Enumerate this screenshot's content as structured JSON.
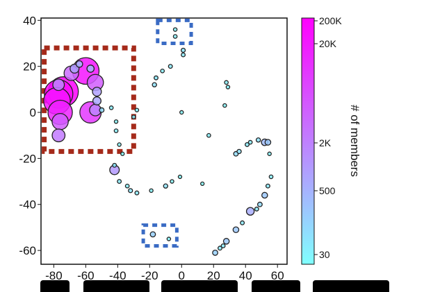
{
  "chart_data": {
    "type": "scatter",
    "xlim": [
      -88,
      66
    ],
    "ylim": [
      -66,
      41
    ],
    "x_ticks": [
      -80,
      -60,
      -40,
      -20,
      0,
      20,
      40,
      60
    ],
    "y_ticks": [
      40,
      20,
      0,
      -20,
      -40,
      -60
    ],
    "grid": false,
    "colorbar": {
      "label": "# of members",
      "ticks": [
        "200K",
        "20K",
        "2K",
        "500",
        "30"
      ],
      "tick_values": [
        200000,
        20000,
        2000,
        500,
        30
      ],
      "colors": [
        "#ff00ff",
        "#80ffff"
      ]
    },
    "highlight_boxes": [
      {
        "color": "#a52a1a",
        "x_range": [
          -86,
          -30
        ],
        "y_range": [
          -17,
          28
        ]
      },
      {
        "color": "#3a6bc4",
        "x_range": [
          -15,
          6
        ],
        "y_range": [
          30,
          40
        ]
      },
      {
        "color": "#3a6bc4",
        "x_range": [
          -24,
          -3
        ],
        "y_range": [
          -58,
          -49
        ]
      }
    ],
    "points": [
      {
        "x": -74,
        "y": 9,
        "m": 200000
      },
      {
        "x": -77,
        "y": 8,
        "m": 150000
      },
      {
        "x": -78,
        "y": 5,
        "m": 100000
      },
      {
        "x": -76,
        "y": 0,
        "m": 60000
      },
      {
        "x": -76,
        "y": -4,
        "m": 8000
      },
      {
        "x": -77,
        "y": -10,
        "m": 3000
      },
      {
        "x": -77,
        "y": 12,
        "m": 2000
      },
      {
        "x": -69,
        "y": 17,
        "m": 5000
      },
      {
        "x": -67,
        "y": 19,
        "m": 800
      },
      {
        "x": -64,
        "y": 21,
        "m": 300
      },
      {
        "x": -60,
        "y": 18,
        "m": 100000
      },
      {
        "x": -57,
        "y": 19,
        "m": 400
      },
      {
        "x": -54,
        "y": 13,
        "m": 8000
      },
      {
        "x": -53,
        "y": 9,
        "m": 800
      },
      {
        "x": -53,
        "y": 5,
        "m": 600
      },
      {
        "x": -54,
        "y": 1,
        "m": 2000
      },
      {
        "x": -57,
        "y": 0,
        "m": 30000
      },
      {
        "x": -50,
        "y": 1,
        "m": 100
      },
      {
        "x": -44,
        "y": 2,
        "m": 50
      },
      {
        "x": -41,
        "y": -4,
        "m": 40
      },
      {
        "x": -41,
        "y": -8,
        "m": 50
      },
      {
        "x": -39,
        "y": -14,
        "m": 40
      },
      {
        "x": -37,
        "y": -18,
        "m": 30
      },
      {
        "x": -30,
        "y": -2,
        "m": 50
      },
      {
        "x": -28,
        "y": 1,
        "m": 40
      },
      {
        "x": -17,
        "y": 12,
        "m": 80
      },
      {
        "x": -16,
        "y": 15,
        "m": 60
      },
      {
        "x": -12,
        "y": 18,
        "m": 50
      },
      {
        "x": -7,
        "y": 20,
        "m": 60
      },
      {
        "x": 1,
        "y": 27,
        "m": 70
      },
      {
        "x": 1,
        "y": 25,
        "m": 60
      },
      {
        "x": -4,
        "y": 36,
        "m": 40
      },
      {
        "x": -4,
        "y": 33,
        "m": 50
      },
      {
        "x": 0,
        "y": 0,
        "m": 40
      },
      {
        "x": 28,
        "y": 13,
        "m": 50
      },
      {
        "x": 29,
        "y": 11,
        "m": 40
      },
      {
        "x": 27,
        "y": 3,
        "m": 40
      },
      {
        "x": 17,
        "y": -10,
        "m": 50
      },
      {
        "x": 34,
        "y": -18,
        "m": 100
      },
      {
        "x": 36,
        "y": -17,
        "m": 80
      },
      {
        "x": 41,
        "y": -14,
        "m": 60
      },
      {
        "x": 43,
        "y": -13,
        "m": 50
      },
      {
        "x": 48,
        "y": -12,
        "m": 80
      },
      {
        "x": 52,
        "y": -13,
        "m": 300
      },
      {
        "x": 54,
        "y": -13,
        "m": 200
      },
      {
        "x": 55,
        "y": -18,
        "m": 40
      },
      {
        "x": 56,
        "y": -28,
        "m": 50
      },
      {
        "x": 54,
        "y": -32,
        "m": 60
      },
      {
        "x": 52,
        "y": -36,
        "m": 200
      },
      {
        "x": 49,
        "y": -40,
        "m": 100
      },
      {
        "x": 47,
        "y": -42,
        "m": 60
      },
      {
        "x": 43,
        "y": -43,
        "m": 500
      },
      {
        "x": 38,
        "y": -48,
        "m": 60
      },
      {
        "x": 34,
        "y": -51,
        "m": 200
      },
      {
        "x": 28,
        "y": -56,
        "m": 200
      },
      {
        "x": 26,
        "y": -58,
        "m": 60
      },
      {
        "x": 24,
        "y": -59,
        "m": 60
      },
      {
        "x": 21,
        "y": -61,
        "m": 150
      },
      {
        "x": 13,
        "y": -31,
        "m": 30
      },
      {
        "x": -1,
        "y": -28,
        "m": 30
      },
      {
        "x": -6,
        "y": -30,
        "m": 40
      },
      {
        "x": -10,
        "y": -32,
        "m": 80
      },
      {
        "x": -19,
        "y": -34,
        "m": 40
      },
      {
        "x": -28,
        "y": -35,
        "m": 60
      },
      {
        "x": -32,
        "y": -34,
        "m": 70
      },
      {
        "x": -34,
        "y": -32,
        "m": 50
      },
      {
        "x": -39,
        "y": -30,
        "m": 60
      },
      {
        "x": -42,
        "y": -25,
        "m": 1000
      },
      {
        "x": -42,
        "y": -23,
        "m": 60
      },
      {
        "x": -18,
        "y": -53,
        "m": 150
      },
      {
        "x": -8,
        "y": -55,
        "m": 40
      }
    ]
  }
}
